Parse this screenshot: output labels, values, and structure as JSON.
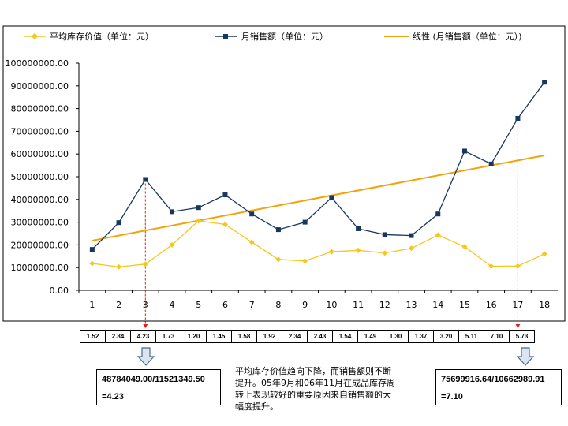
{
  "chart_data": {
    "type": "line",
    "title": "",
    "xlabel": "",
    "ylabel": "",
    "categories": [
      "1",
      "2",
      "3",
      "4",
      "5",
      "6",
      "7",
      "8",
      "9",
      "10",
      "11",
      "12",
      "13",
      "14",
      "15",
      "16",
      "17",
      "18"
    ],
    "ylim": [
      0,
      100000000
    ],
    "yticks": [
      "0.00",
      "10000000.00",
      "20000000.00",
      "30000000.00",
      "40000000.00",
      "50000000.00",
      "60000000.00",
      "70000000.00",
      "80000000.00",
      "90000000.00",
      "100000000.00"
    ],
    "grid": "horizontal",
    "legend_position": "top",
    "series": [
      {
        "name": "平均库存价值（单位：元）",
        "color": "#f6c81e",
        "marker": "diamond",
        "values": [
          11800000,
          10300000,
          11521349.5,
          20000000,
          30600000,
          29000000,
          21200000,
          13600000,
          12900000,
          17000000,
          17600000,
          16400000,
          18500000,
          24300000,
          19200000,
          10600000,
          10662989.91,
          16000000
        ]
      },
      {
        "name": "月销售额（单位：元）",
        "color": "#17375e",
        "marker": "square",
        "values": [
          18000000,
          29800000,
          48784049,
          34600000,
          36400000,
          42000000,
          33600000,
          26700000,
          30000000,
          40800000,
          27100000,
          24500000,
          24100000,
          33600000,
          61300000,
          55600000,
          75699916.64,
          91600000
        ]
      },
      {
        "name": "线性 (月销售额（单位：元）)",
        "color": "#f0a30a",
        "marker": "none",
        "trend": true,
        "values": [
          21900000,
          24110000,
          26310000,
          28520000,
          30720000,
          32930000,
          35130000,
          37340000,
          39540000,
          41750000,
          43950000,
          46160000,
          48360000,
          50570000,
          52770000,
          54980000,
          57180000,
          59390000
        ]
      }
    ],
    "highlight_points": [
      3,
      17
    ]
  },
  "ratio_row": [
    "1.52",
    "2.84",
    "4.23",
    "1.73",
    "1.20",
    "1.45",
    "1.58",
    "1.92",
    "2.34",
    "2.43",
    "1.54",
    "1.49",
    "1.30",
    "1.37",
    "3.20",
    "5.11",
    "7.10",
    "5.73"
  ],
  "calc_left": {
    "line1": "48784049.00/11521349.50",
    "line2": "=4.23"
  },
  "calc_right": {
    "line1": "75699916.64/10662989.91",
    "line2": "=7.10"
  },
  "note": {
    "line1": "平均库存价值趋向下降，而销售额则不断",
    "line2": "提升。05年9月和06年11月在成品库存周",
    "line3": "转上表现较好的重要原因来自销售额的大",
    "line4": "幅度提升。"
  },
  "colors": {
    "dashed_marker": "#e02020",
    "arrow_fill": "#dbe5f1",
    "arrow_stroke": "#4a6b8a"
  }
}
